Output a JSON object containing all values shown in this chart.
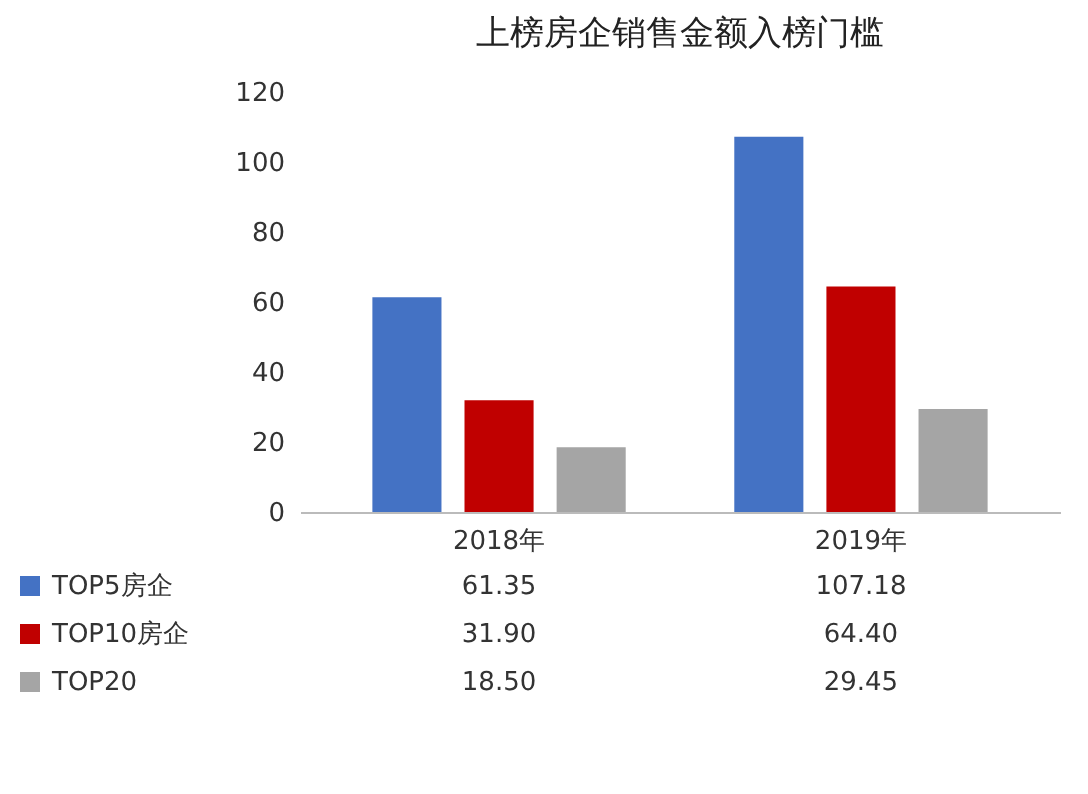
{
  "chart_data": {
    "type": "bar",
    "title": "上榜房企销售金额入榜门槛",
    "categories": [
      "2018年",
      "2019年"
    ],
    "series": [
      {
        "name": "TOP5房企",
        "color": "#4472c4",
        "values": [
          61.35,
          107.18
        ],
        "value_labels": [
          "61.35",
          "107.18"
        ]
      },
      {
        "name": "TOP10房企",
        "color": "#c00000",
        "values": [
          31.9,
          64.4
        ],
        "value_labels": [
          "31.90",
          "64.40"
        ]
      },
      {
        "name": "TOP20",
        "color": "#a5a5a5",
        "values": [
          18.5,
          29.45
        ],
        "value_labels": [
          "18.50",
          "29.45"
        ]
      }
    ],
    "ylim": [
      0,
      120
    ],
    "yticks": [
      0,
      20,
      40,
      60,
      80,
      100,
      120
    ],
    "grid": false,
    "legend": "bottom"
  }
}
